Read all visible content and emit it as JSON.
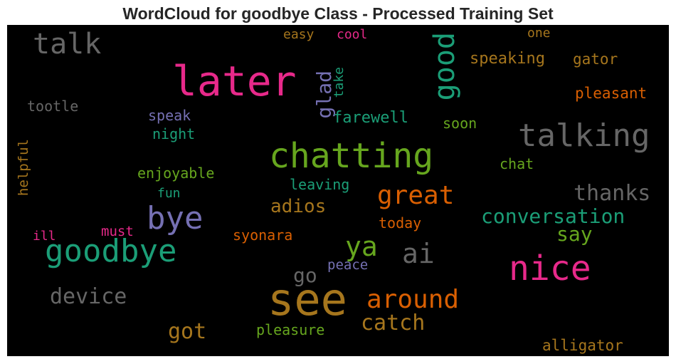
{
  "header": {
    "title": "WordCloud for goodbye Class - Processed Training Set"
  },
  "chart_data": {
    "type": "wordcloud",
    "title": "WordCloud for goodbye Class - Processed Training Set",
    "background": "#000000",
    "colormap": "Dark2",
    "words": [
      {
        "text": "see",
        "color": "#a6761d"
      },
      {
        "text": "later",
        "color": "#e7298a"
      },
      {
        "text": "chatting",
        "color": "#66a61e"
      },
      {
        "text": "nice",
        "color": "#e7298a"
      },
      {
        "text": "goodbye",
        "color": "#1b9e77"
      },
      {
        "text": "talking",
        "color": "#666666"
      },
      {
        "text": "bye",
        "color": "#7570b3"
      },
      {
        "text": "good",
        "color": "#1b9e77"
      },
      {
        "text": "talk",
        "color": "#666666"
      },
      {
        "text": "great",
        "color": "#d95f02"
      },
      {
        "text": "around",
        "color": "#d95f02"
      },
      {
        "text": "conversation",
        "color": "#1b9e77"
      },
      {
        "text": "ai",
        "color": "#666666"
      },
      {
        "text": "device",
        "color": "#666666"
      },
      {
        "text": "catch",
        "color": "#a6761d"
      },
      {
        "text": "thanks",
        "color": "#666666"
      },
      {
        "text": "ya",
        "color": "#66a61e"
      },
      {
        "text": "got",
        "color": "#a6761d"
      },
      {
        "text": "adios",
        "color": "#a6761d"
      },
      {
        "text": "say",
        "color": "#66a61e"
      },
      {
        "text": "go",
        "color": "#666666"
      },
      {
        "text": "glad",
        "color": "#7570b3"
      },
      {
        "text": "farewell",
        "color": "#1b9e77"
      },
      {
        "text": "speaking",
        "color": "#a6761d"
      },
      {
        "text": "alligator",
        "color": "#a6761d"
      },
      {
        "text": "pleasant",
        "color": "#d95f02"
      },
      {
        "text": "gator",
        "color": "#a6761d"
      },
      {
        "text": "pleasure",
        "color": "#66a61e"
      },
      {
        "text": "enjoyable",
        "color": "#66a61e"
      },
      {
        "text": "leaving",
        "color": "#1b9e77"
      },
      {
        "text": "syonara",
        "color": "#d95f02"
      },
      {
        "text": "today",
        "color": "#d95f02"
      },
      {
        "text": "helpful",
        "color": "#a6761d"
      },
      {
        "text": "tootle",
        "color": "#666666"
      },
      {
        "text": "speak",
        "color": "#7570b3"
      },
      {
        "text": "night",
        "color": "#1b9e77"
      },
      {
        "text": "must",
        "color": "#e7298a"
      },
      {
        "text": "peace",
        "color": "#7570b3"
      },
      {
        "text": "easy",
        "color": "#a6761d"
      },
      {
        "text": "cool",
        "color": "#e7298a"
      },
      {
        "text": "take",
        "color": "#1b9e77"
      },
      {
        "text": "soon",
        "color": "#66a61e"
      },
      {
        "text": "chat",
        "color": "#66a61e"
      },
      {
        "text": "fun",
        "color": "#1b9e77"
      },
      {
        "text": "ill",
        "color": "#e7298a"
      },
      {
        "text": "one",
        "color": "#a6761d"
      }
    ]
  }
}
